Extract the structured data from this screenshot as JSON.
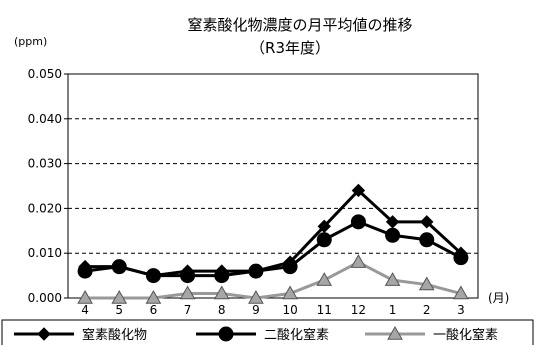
{
  "chart_data": {
    "type": "line",
    "title": "窒素酸化物濃度の月平均値の推移",
    "subtitle": "（R3年度）",
    "yunit": "(ppm)",
    "xunit": "(月)",
    "categories": [
      "4",
      "5",
      "6",
      "7",
      "8",
      "9",
      "10",
      "11",
      "12",
      "1",
      "2",
      "3"
    ],
    "y_ticks": [
      "0.000",
      "0.010",
      "0.020",
      "0.030",
      "0.040",
      "0.050"
    ],
    "ylim": [
      0,
      0.05
    ],
    "grid": true,
    "legend_position": "bottom",
    "series": [
      {
        "name": "窒素酸化物",
        "marker": "diamond",
        "color": "#000000",
        "values": [
          0.007,
          0.007,
          0.005,
          0.006,
          0.006,
          0.006,
          0.008,
          0.016,
          0.024,
          0.017,
          0.017,
          0.01
        ]
      },
      {
        "name": "二酸化窒素",
        "marker": "circle",
        "color": "#000000",
        "values": [
          0.006,
          0.007,
          0.005,
          0.005,
          0.005,
          0.006,
          0.007,
          0.013,
          0.017,
          0.014,
          0.013,
          0.009
        ]
      },
      {
        "name": "一酸化窒素",
        "marker": "triangle",
        "color": "#999999",
        "values": [
          0.0,
          0.0,
          0.0,
          0.001,
          0.001,
          0.0,
          0.001,
          0.004,
          0.008,
          0.004,
          0.003,
          0.001
        ]
      }
    ]
  }
}
